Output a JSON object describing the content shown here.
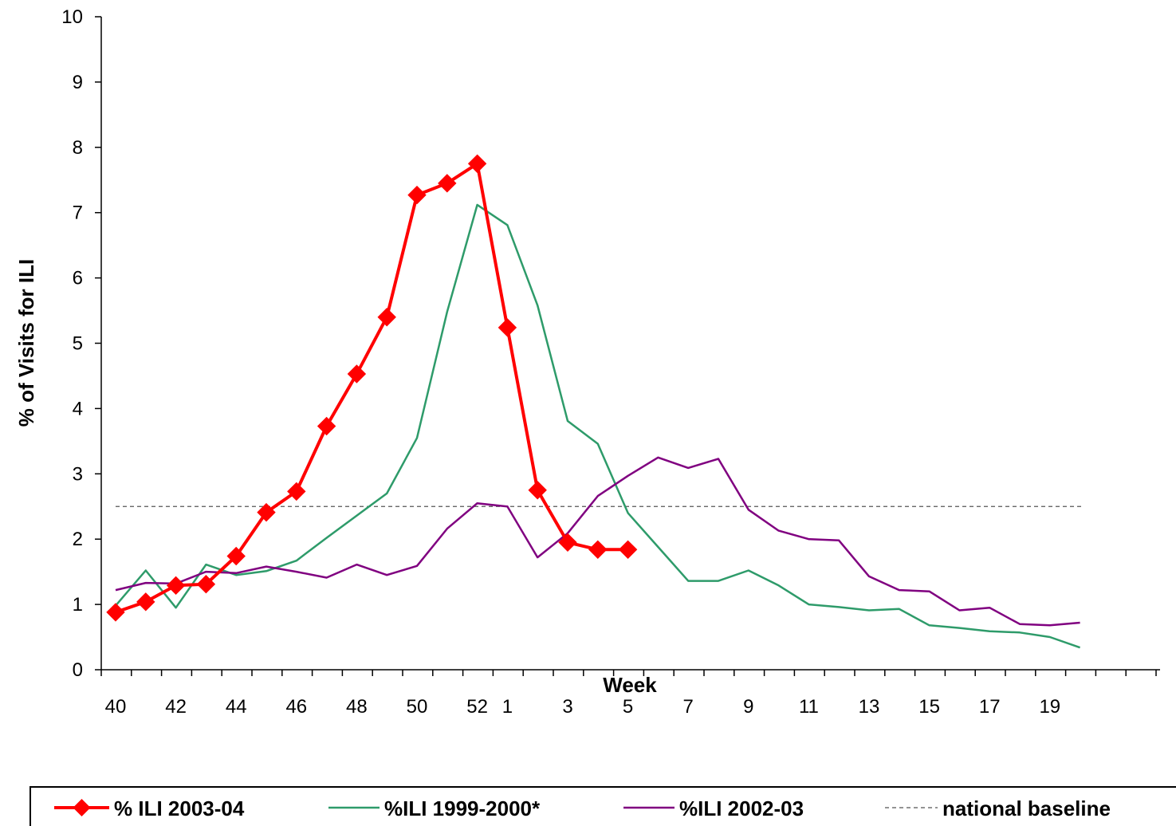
{
  "chart_data": {
    "type": "line",
    "xlabel": "Week",
    "ylabel": "% of Visits for ILI",
    "ylim": [
      0,
      10
    ],
    "yticks": [
      "0",
      "1",
      "2",
      "3",
      "4",
      "5",
      "6",
      "7",
      "8",
      "9",
      "10"
    ],
    "weeks": [
      "40",
      "41",
      "42",
      "43",
      "44",
      "45",
      "46",
      "47",
      "48",
      "49",
      "50",
      "51",
      "52",
      "1",
      "2",
      "3",
      "4",
      "5",
      "6",
      "7",
      "8",
      "9",
      "10",
      "11",
      "12",
      "13",
      "14",
      "15",
      "16",
      "17",
      "18",
      "19",
      "20"
    ],
    "x_tick_labels": [
      "40",
      "",
      "42",
      "",
      "44",
      "",
      "46",
      "",
      "48",
      "",
      "50",
      "",
      "52",
      "1",
      "",
      "3",
      "",
      "5",
      "",
      "7",
      "",
      "9",
      "",
      "11",
      "",
      "13",
      "",
      "15",
      "",
      "17",
      "",
      "19",
      ""
    ],
    "grid": false,
    "legend_position": "bottom",
    "series": [
      {
        "name": "% ILI 2003-04",
        "color": "#ff0000",
        "marker": "diamond",
        "values": [
          0.88,
          1.04,
          1.29,
          1.31,
          1.74,
          2.41,
          2.73,
          3.73,
          4.53,
          5.4,
          7.27,
          7.45,
          7.75,
          5.24,
          2.75,
          1.95,
          1.84,
          1.84
        ]
      },
      {
        "name": "%ILI 1999-2000*",
        "color": "#2e9b6a",
        "marker": "none",
        "values": [
          0.98,
          1.52,
          0.95,
          1.61,
          1.45,
          1.51,
          1.67,
          2.02,
          2.36,
          2.7,
          3.55,
          5.48,
          7.12,
          6.81,
          5.58,
          3.81,
          3.46,
          2.4,
          1.88,
          1.36,
          1.36,
          1.52,
          1.29,
          1.0,
          0.96,
          0.91,
          0.93,
          0.68,
          0.64,
          0.59,
          0.57,
          0.5,
          0.34
        ]
      },
      {
        "name": "%ILI 2002-03",
        "color": "#800080",
        "marker": "none",
        "values": [
          1.22,
          1.33,
          1.32,
          1.5,
          1.48,
          1.58,
          1.5,
          1.41,
          1.61,
          1.45,
          1.59,
          2.16,
          2.55,
          2.5,
          1.72,
          2.09,
          2.66,
          2.97,
          3.25,
          3.09,
          3.23,
          2.45,
          2.13,
          2.0,
          1.98,
          1.43,
          1.22,
          1.2,
          0.91,
          0.95,
          0.7,
          0.68,
          0.72
        ]
      },
      {
        "name": "national baseline",
        "color": "#555555",
        "marker": "none",
        "dashed": true,
        "constant": 2.5
      }
    ]
  }
}
